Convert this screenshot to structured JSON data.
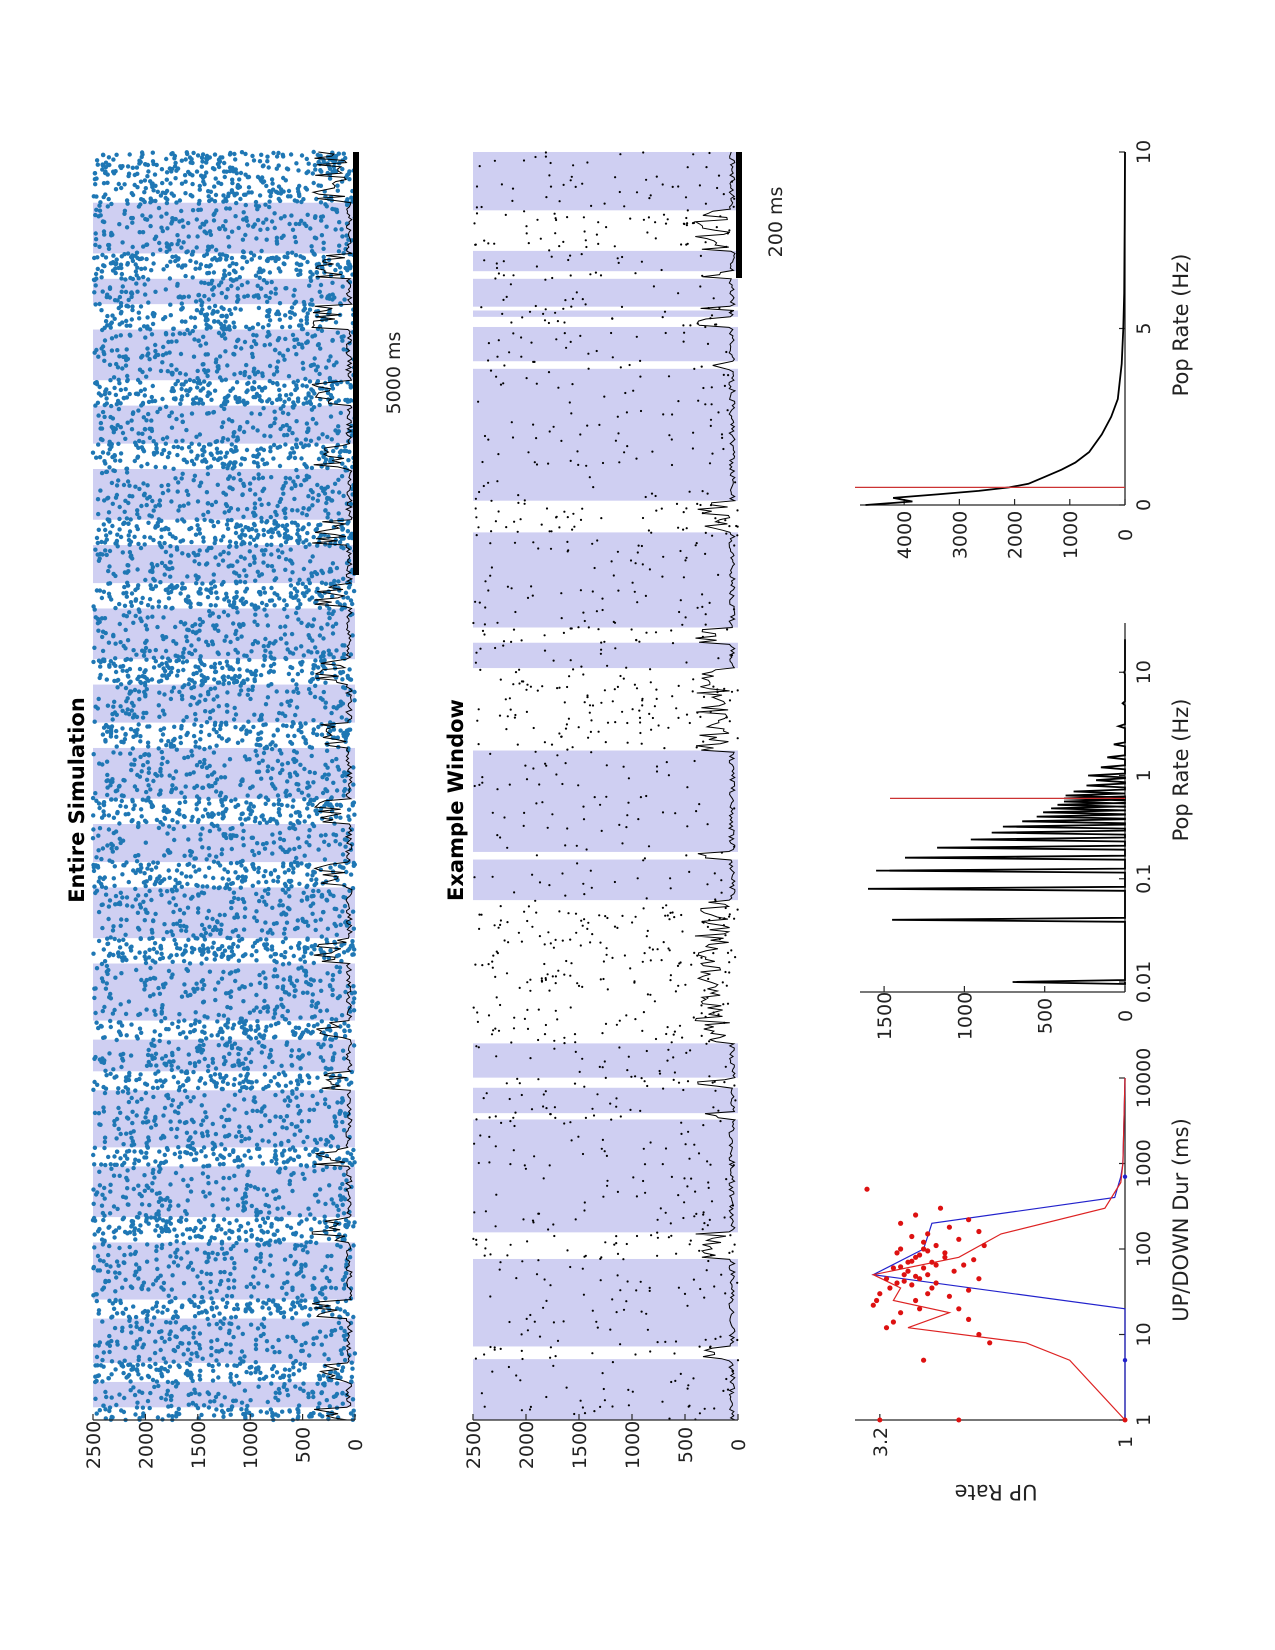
{
  "colors": {
    "up_band": "#cfcff2",
    "raster_top": "#1f77b4",
    "raster_window": "#000000",
    "pop_rate": "#000000",
    "threshold": "#cc3333",
    "scatter": "#dd1111",
    "hist_blue": "#2222cc",
    "hist_red": "#dd2222"
  },
  "panel_top": {
    "title": "Entire Simulation",
    "scale_bar_label": "5000 ms",
    "ytick_labels": [
      "0",
      "500",
      "1000",
      "1500",
      "2000",
      "2500"
    ]
  },
  "panel_middle": {
    "title": "Example Window",
    "scale_bar_label": "200 ms",
    "ytick_labels": [
      "0",
      "500",
      "1000",
      "1500",
      "2000",
      "2500"
    ]
  },
  "panel_bottom_left": {
    "xlabel": "UP/DOWN Dur (ms)",
    "ylabel": "UP Rate",
    "xtick_labels": [
      "1",
      "10",
      "100",
      "1000",
      "10000"
    ],
    "ytick_labels": [
      "1",
      "3.2"
    ]
  },
  "panel_bottom_middle": {
    "xlabel": "Pop Rate (Hz)",
    "xtick_labels": [
      "0.01",
      "0.1",
      "1",
      "10"
    ],
    "ytick_labels": [
      "0",
      "500",
      "1000",
      "1500"
    ]
  },
  "panel_bottom_right": {
    "xlabel": "Pop Rate (Hz)",
    "xtick_labels": [
      "0",
      "5",
      "10"
    ],
    "ytick_labels": [
      "0",
      "1000",
      "2000",
      "3000",
      "4000"
    ]
  },
  "chart_data": [
    {
      "type": "scatter",
      "panel": "Entire Simulation",
      "title": "Entire Simulation",
      "ylim": [
        0,
        2500
      ],
      "x_scale_bar_ms": 5000,
      "ytick_values": [
        0,
        500,
        1000,
        1500,
        2000,
        2500
      ],
      "up_state_intervals": [
        [
          0.01,
          0.03
        ],
        [
          0.045,
          0.08
        ],
        [
          0.095,
          0.14
        ],
        [
          0.16,
          0.2
        ],
        [
          0.215,
          0.26
        ],
        [
          0.275,
          0.3
        ],
        [
          0.315,
          0.36
        ],
        [
          0.38,
          0.42
        ],
        [
          0.44,
          0.47
        ],
        [
          0.49,
          0.53
        ],
        [
          0.55,
          0.58
        ],
        [
          0.6,
          0.64
        ],
        [
          0.66,
          0.69
        ],
        [
          0.71,
          0.75
        ],
        [
          0.77,
          0.8
        ],
        [
          0.82,
          0.86
        ],
        [
          0.88,
          0.9
        ],
        [
          0.92,
          0.96
        ]
      ]
    },
    {
      "type": "scatter",
      "panel": "Example Window",
      "title": "Example Window",
      "ylim": [
        0,
        2500
      ],
      "x_scale_bar_ms": 200,
      "ytick_values": [
        0,
        500,
        1000,
        1500,
        2000,
        2500
      ],
      "up_state_intervals": [
        [
          0.0,
          0.048
        ],
        [
          0.058,
          0.127
        ],
        [
          0.148,
          0.237
        ],
        [
          0.242,
          0.262
        ],
        [
          0.27,
          0.297
        ],
        [
          0.41,
          0.442
        ],
        [
          0.448,
          0.528
        ],
        [
          0.593,
          0.613
        ],
        [
          0.625,
          0.7
        ],
        [
          0.725,
          0.829
        ],
        [
          0.835,
          0.862
        ],
        [
          0.87,
          0.875
        ],
        [
          0.878,
          0.9
        ],
        [
          0.906,
          0.922
        ],
        [
          0.954,
          1.0
        ]
      ]
    },
    {
      "type": "scatter",
      "panel": "UP Rate vs UP/DOWN Dur",
      "xlabel": "UP/DOWN Dur (ms)",
      "ylabel": "UP Rate",
      "x_scale": "log",
      "y_scale": "log",
      "xlim": [
        1,
        10000
      ],
      "ylim": [
        1,
        3.6
      ],
      "points": [
        [
          5,
          2.6
        ],
        [
          12,
          3.1
        ],
        [
          14,
          3.0
        ],
        [
          18,
          2.9
        ],
        [
          22,
          3.3
        ],
        [
          25,
          3.25
        ],
        [
          30,
          3.2
        ],
        [
          35,
          3.05
        ],
        [
          40,
          2.95
        ],
        [
          45,
          3.1
        ],
        [
          50,
          2.85
        ],
        [
          60,
          3.0
        ],
        [
          70,
          2.8
        ],
        [
          80,
          2.7
        ],
        [
          90,
          2.95
        ],
        [
          100,
          2.9
        ],
        [
          120,
          2.6
        ],
        [
          140,
          2.75
        ],
        [
          150,
          2.55
        ],
        [
          200,
          2.9
        ],
        [
          250,
          2.7
        ],
        [
          300,
          2.4
        ],
        [
          500,
          3.4
        ],
        [
          8,
          1.9
        ],
        [
          10,
          2.0
        ],
        [
          15,
          2.1
        ],
        [
          20,
          2.2
        ],
        [
          28,
          2.3
        ],
        [
          33,
          2.1
        ],
        [
          45,
          2.0
        ],
        [
          55,
          2.25
        ],
        [
          65,
          2.15
        ],
        [
          75,
          2.05
        ],
        [
          90,
          2.35
        ],
        [
          110,
          1.95
        ],
        [
          130,
          2.2
        ],
        [
          160,
          2.0
        ],
        [
          180,
          2.3
        ],
        [
          220,
          2.1
        ],
        [
          35,
          2.5
        ],
        [
          40,
          2.45
        ],
        [
          45,
          2.65
        ],
        [
          50,
          2.55
        ],
        [
          60,
          2.6
        ],
        [
          65,
          2.45
        ],
        [
          70,
          2.5
        ],
        [
          80,
          2.35
        ],
        [
          95,
          2.55
        ],
        [
          110,
          2.45
        ],
        [
          20,
          2.65
        ],
        [
          25,
          2.7
        ],
        [
          30,
          2.55
        ],
        [
          38,
          2.75
        ],
        [
          42,
          2.85
        ],
        [
          48,
          2.7
        ],
        [
          55,
          2.8
        ],
        [
          62,
          2.9
        ],
        [
          72,
          2.75
        ],
        [
          85,
          2.65
        ],
        [
          100,
          2.6
        ]
      ],
      "series": [
        {
          "name": "",
          "color": "blue",
          "x": [
            1,
            20,
            50,
            100,
            200,
            400,
            700,
            1000,
            10000
          ],
          "y": [
            1.0,
            1.0,
            3.3,
            2.6,
            2.5,
            1.05,
            1.02,
            1.01,
            1.0
          ]
        },
        {
          "name": "",
          "color": "red",
          "x": [
            1,
            5,
            8,
            12,
            18,
            25,
            35,
            50,
            80,
            150,
            300,
            600,
            1000,
            10000
          ],
          "y": [
            1.0,
            1.3,
            1.6,
            2.8,
            2.3,
            3.0,
            2.9,
            3.3,
            2.2,
            1.8,
            1.1,
            1.02,
            1.01,
            1.0
          ]
        }
      ]
    },
    {
      "type": "line",
      "panel": "Pop Rate histogram (log x)",
      "xlabel": "Pop Rate (Hz)",
      "x_scale": "log",
      "xlim": [
        0.008,
        30
      ],
      "ylim": [
        0,
        1650
      ],
      "series": [
        {
          "name": "",
          "x": [
            0.01,
            0.04,
            0.08,
            0.12,
            0.16,
            0.2,
            0.24,
            0.28,
            0.32,
            0.36,
            0.4,
            0.44,
            0.48,
            0.52,
            0.56,
            0.6,
            0.64,
            0.7,
            0.8,
            0.9,
            1.0,
            1.2,
            1.5,
            2,
            3,
            5,
            10,
            20
          ],
          "y": [
            700,
            1450,
            1600,
            1550,
            1370,
            1170,
            960,
            830,
            760,
            640,
            550,
            510,
            460,
            420,
            380,
            380,
            370,
            320,
            240,
            180,
            230,
            150,
            110,
            70,
            40,
            15,
            5,
            0
          ]
        }
      ],
      "threshold_x": 0.6
    },
    {
      "type": "line",
      "panel": "Pop Rate histogram (linear x)",
      "xlabel": "Pop Rate (Hz)",
      "xlim": [
        0,
        10
      ],
      "ylim": [
        0,
        4800
      ],
      "series": [
        {
          "name": "",
          "x": [
            0,
            0.1,
            0.2,
            0.3,
            0.4,
            0.5,
            0.6,
            0.8,
            1.0,
            1.2,
            1.5,
            2,
            2.5,
            3,
            4,
            5,
            6,
            8,
            10
          ],
          "y": [
            4700,
            3850,
            4200,
            3400,
            2650,
            2100,
            1750,
            1450,
            1150,
            900,
            650,
            420,
            250,
            130,
            60,
            30,
            15,
            5,
            0
          ]
        }
      ],
      "threshold_x": 0.5
    }
  ]
}
